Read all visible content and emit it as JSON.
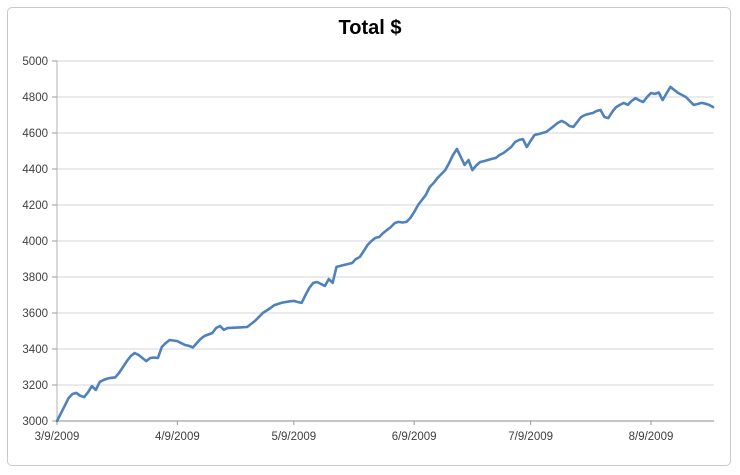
{
  "title": "Total $",
  "chart_data": {
    "type": "line",
    "title": "Total $",
    "xlabel": "",
    "ylabel": "",
    "legend": "none",
    "grid": "horizontal",
    "colors": {
      "line": "#4F81BD",
      "gridline": "#d6d6d6",
      "y_axis_line": "#b3b3b3",
      "x_axis_line": "#8c8c8c",
      "tick": "#9b9b9b",
      "label": "#3f3f3f",
      "title": "#000000",
      "frame_border": "#c9c9c9",
      "background": "#ffffff"
    },
    "x_axis": {
      "type": "date",
      "start_label": "3/9/2009",
      "tick_labels": [
        "3/9/2009",
        "4/9/2009",
        "5/9/2009",
        "6/9/2009",
        "7/9/2009",
        "8/9/2009"
      ],
      "tick_day_offsets": [
        0,
        31,
        61,
        92,
        122,
        153
      ],
      "max_day_offset": 169
    },
    "y_axis": {
      "min": 3000,
      "max": 5000,
      "step": 200,
      "tick_labels": [
        "3000",
        "3200",
        "3400",
        "3600",
        "3800",
        "4000",
        "4200",
        "4400",
        "4600",
        "4800",
        "5000"
      ]
    },
    "series": [
      {
        "name": "Total $",
        "color": "#4F81BD",
        "points": [
          [
            0,
            3000
          ],
          [
            2,
            3085
          ],
          [
            3,
            3128
          ],
          [
            4,
            3150
          ],
          [
            5,
            3156
          ],
          [
            6,
            3140
          ],
          [
            7,
            3133
          ],
          [
            8,
            3160
          ],
          [
            9,
            3194
          ],
          [
            10,
            3172
          ],
          [
            11,
            3217
          ],
          [
            12,
            3228
          ],
          [
            13,
            3236
          ],
          [
            14,
            3240
          ],
          [
            15,
            3242
          ],
          [
            16,
            3267
          ],
          [
            17,
            3300
          ],
          [
            18,
            3333
          ],
          [
            19,
            3361
          ],
          [
            20,
            3378
          ],
          [
            21,
            3367
          ],
          [
            22,
            3350
          ],
          [
            23,
            3333
          ],
          [
            24,
            3350
          ],
          [
            25,
            3352
          ],
          [
            26,
            3350
          ],
          [
            27,
            3411
          ],
          [
            28,
            3433
          ],
          [
            29,
            3450
          ],
          [
            31,
            3444
          ],
          [
            32,
            3433
          ],
          [
            33,
            3422
          ],
          [
            34,
            3417
          ],
          [
            35,
            3409
          ],
          [
            36,
            3433
          ],
          [
            37,
            3456
          ],
          [
            38,
            3472
          ],
          [
            40,
            3489
          ],
          [
            41,
            3517
          ],
          [
            42,
            3528
          ],
          [
            43,
            3506
          ],
          [
            44,
            3517
          ],
          [
            45,
            3518
          ],
          [
            47,
            3520
          ],
          [
            49,
            3522
          ],
          [
            51,
            3556
          ],
          [
            53,
            3600
          ],
          [
            55,
            3628
          ],
          [
            56,
            3644
          ],
          [
            58,
            3658
          ],
          [
            60,
            3665
          ],
          [
            61,
            3667
          ],
          [
            62,
            3661
          ],
          [
            63,
            3656
          ],
          [
            64,
            3700
          ],
          [
            65,
            3740
          ],
          [
            66,
            3767
          ],
          [
            67,
            3772
          ],
          [
            68,
            3761
          ],
          [
            69,
            3750
          ],
          [
            70,
            3789
          ],
          [
            71,
            3767
          ],
          [
            72,
            3856
          ],
          [
            74,
            3867
          ],
          [
            75,
            3872
          ],
          [
            76,
            3878
          ],
          [
            77,
            3900
          ],
          [
            78,
            3911
          ],
          [
            79,
            3944
          ],
          [
            80,
            3978
          ],
          [
            81,
            4000
          ],
          [
            82,
            4017
          ],
          [
            83,
            4022
          ],
          [
            84,
            4044
          ],
          [
            85,
            4061
          ],
          [
            86,
            4078
          ],
          [
            87,
            4100
          ],
          [
            88,
            4106
          ],
          [
            89,
            4103
          ],
          [
            90,
            4106
          ],
          [
            91,
            4128
          ],
          [
            92,
            4161
          ],
          [
            93,
            4200
          ],
          [
            94,
            4228
          ],
          [
            95,
            4256
          ],
          [
            96,
            4300
          ],
          [
            97,
            4322
          ],
          [
            98,
            4350
          ],
          [
            99,
            4372
          ],
          [
            100,
            4394
          ],
          [
            101,
            4433
          ],
          [
            102,
            4478
          ],
          [
            103,
            4511
          ],
          [
            104,
            4467
          ],
          [
            105,
            4422
          ],
          [
            106,
            4450
          ],
          [
            107,
            4394
          ],
          [
            108,
            4420
          ],
          [
            109,
            4439
          ],
          [
            110,
            4444
          ],
          [
            111,
            4450
          ],
          [
            112,
            4456
          ],
          [
            113,
            4461
          ],
          [
            114,
            4478
          ],
          [
            115,
            4489
          ],
          [
            117,
            4522
          ],
          [
            118,
            4550
          ],
          [
            119,
            4561
          ],
          [
            120,
            4566
          ],
          [
            121,
            4522
          ],
          [
            122,
            4556
          ],
          [
            123,
            4589
          ],
          [
            124,
            4594
          ],
          [
            125,
            4600
          ],
          [
            126,
            4606
          ],
          [
            127,
            4622
          ],
          [
            128,
            4639
          ],
          [
            129,
            4656
          ],
          [
            130,
            4667
          ],
          [
            131,
            4656
          ],
          [
            132,
            4639
          ],
          [
            133,
            4634
          ],
          [
            134,
            4661
          ],
          [
            135,
            4689
          ],
          [
            136,
            4700
          ],
          [
            137,
            4706
          ],
          [
            138,
            4711
          ],
          [
            139,
            4722
          ],
          [
            140,
            4728
          ],
          [
            141,
            4689
          ],
          [
            142,
            4683
          ],
          [
            143,
            4717
          ],
          [
            144,
            4744
          ],
          [
            145,
            4756
          ],
          [
            146,
            4767
          ],
          [
            147,
            4756
          ],
          [
            148,
            4778
          ],
          [
            149,
            4794
          ],
          [
            150,
            4781
          ],
          [
            151,
            4772
          ],
          [
            152,
            4800
          ],
          [
            153,
            4822
          ],
          [
            154,
            4817
          ],
          [
            155,
            4825
          ],
          [
            156,
            4783
          ],
          [
            157,
            4820
          ],
          [
            158,
            4856
          ],
          [
            159,
            4839
          ],
          [
            160,
            4822
          ],
          [
            161,
            4811
          ],
          [
            162,
            4800
          ],
          [
            163,
            4778
          ],
          [
            164,
            4756
          ],
          [
            165,
            4761
          ],
          [
            166,
            4767
          ],
          [
            167,
            4763
          ],
          [
            168,
            4756
          ],
          [
            169,
            4744
          ]
        ]
      }
    ]
  }
}
